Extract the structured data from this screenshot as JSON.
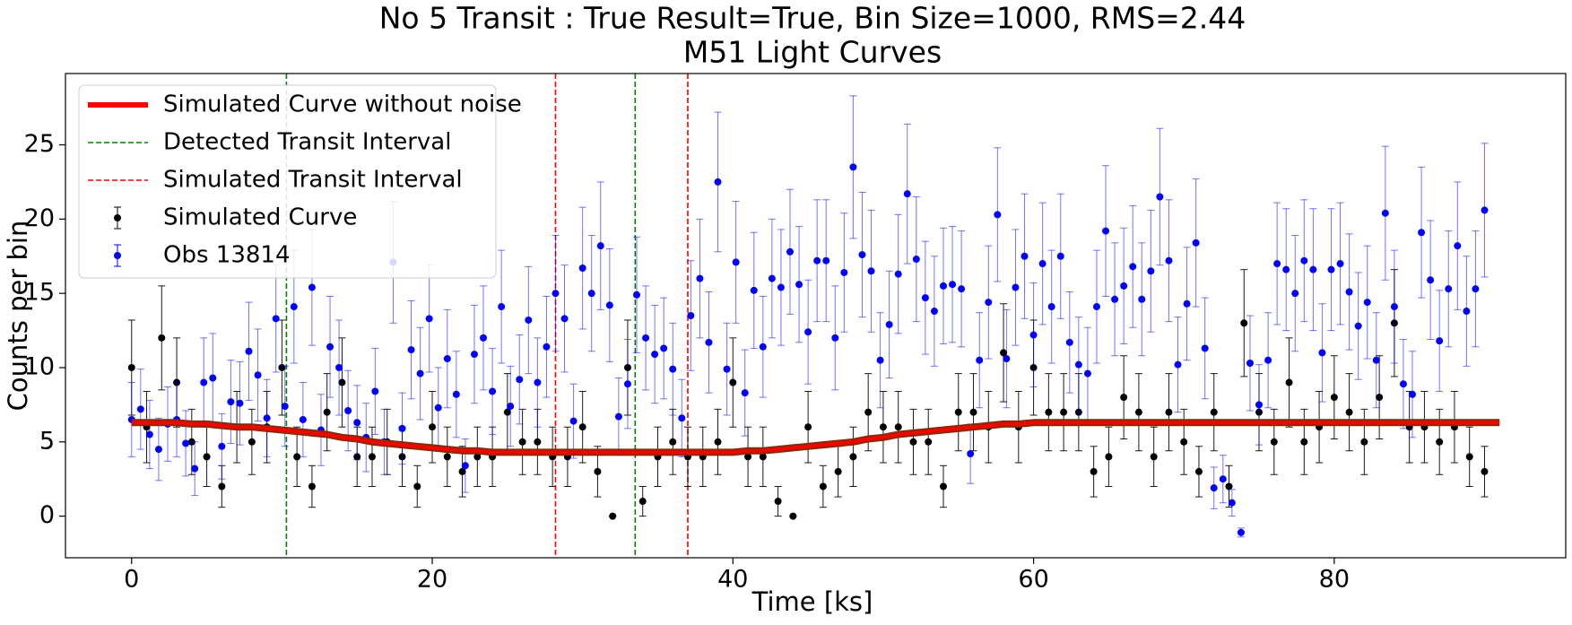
{
  "chart_data": {
    "type": "errorbar",
    "title": "No 5 Transit : True Result=True, Bin Size=1000, RMS=2.44",
    "subtitle": "M51 Light Curves",
    "x_label": "Time [ks]",
    "y_label": "Counts per bin",
    "xlim": [
      -4.4,
      95.4
    ],
    "ylim": [
      -2.8,
      29.8
    ],
    "xticks": [
      0,
      20,
      40,
      60,
      80
    ],
    "yticks": [
      0,
      5,
      10,
      15,
      20,
      25
    ],
    "legend": "upper left",
    "series": [
      {
        "name": "Simulated Curve without noise",
        "kind": "line",
        "color": "#ff0000",
        "x": [
          0,
          1,
          2,
          3,
          4,
          5,
          6,
          7,
          8,
          9,
          10,
          11,
          12,
          13,
          14,
          15,
          16,
          17,
          18,
          19,
          20,
          21,
          22,
          23,
          24,
          25,
          26,
          27,
          28,
          29,
          30,
          31,
          32,
          33,
          34,
          35,
          36,
          37,
          38,
          39,
          40,
          41,
          42,
          43,
          44,
          45,
          46,
          47,
          48,
          49,
          50,
          51,
          52,
          53,
          54,
          55,
          56,
          57,
          58,
          59,
          60,
          61,
          62,
          63,
          64,
          65,
          66,
          67,
          68,
          69,
          70,
          71,
          72,
          73,
          74,
          75,
          76,
          77,
          78,
          79,
          80,
          81,
          82,
          83,
          84,
          85,
          86,
          87,
          88,
          89,
          90,
          91
        ],
        "values": [
          6.3,
          6.3,
          6.3,
          6.3,
          6.2,
          6.2,
          6.1,
          6.0,
          6.0,
          5.9,
          5.8,
          5.7,
          5.6,
          5.5,
          5.3,
          5.2,
          5.0,
          4.9,
          4.8,
          4.7,
          4.6,
          4.5,
          4.4,
          4.4,
          4.3,
          4.3,
          4.3,
          4.3,
          4.3,
          4.3,
          4.3,
          4.3,
          4.3,
          4.3,
          4.3,
          4.3,
          4.3,
          4.3,
          4.3,
          4.3,
          4.3,
          4.4,
          4.4,
          4.5,
          4.6,
          4.7,
          4.8,
          4.9,
          5.0,
          5.2,
          5.3,
          5.5,
          5.6,
          5.7,
          5.8,
          5.9,
          6.0,
          6.1,
          6.2,
          6.2,
          6.3,
          6.3,
          6.3,
          6.3,
          6.3,
          6.3,
          6.3,
          6.3,
          6.3,
          6.3,
          6.3,
          6.3,
          6.3,
          6.3,
          6.3,
          6.3,
          6.3,
          6.3,
          6.3,
          6.3,
          6.3,
          6.3,
          6.3,
          6.3,
          6.3,
          6.3,
          6.3,
          6.3,
          6.3,
          6.3,
          6.3,
          6.3
        ]
      },
      {
        "name": "Detected Transit Interval",
        "kind": "vline",
        "color": "#008000",
        "x": [
          10.3,
          33.5
        ]
      },
      {
        "name": "Simulated Transit Interval",
        "kind": "vline",
        "color": "#ff0000",
        "x": [
          28.2,
          37.0
        ]
      },
      {
        "name": "Simulated Curve",
        "kind": "points",
        "color": "#000000",
        "x": [
          0,
          1,
          2,
          3,
          4,
          5,
          6,
          7,
          8,
          9,
          10,
          11,
          12,
          13,
          14,
          15,
          16,
          17,
          18,
          19,
          20,
          21,
          22,
          23,
          24,
          25,
          26,
          27,
          28,
          29,
          30,
          31,
          32,
          33,
          34,
          35,
          36,
          37,
          38,
          39,
          40,
          41,
          42,
          43,
          44,
          45,
          46,
          47,
          48,
          49,
          50,
          51,
          52,
          53,
          54,
          55,
          56,
          57,
          58,
          59,
          60,
          61,
          62,
          63,
          64,
          65,
          66,
          67,
          68,
          69,
          70,
          71,
          72,
          73,
          74,
          75,
          76,
          77,
          78,
          79,
          80,
          81,
          82,
          83,
          84,
          85,
          86,
          87,
          88,
          89,
          90
        ],
        "values": [
          10,
          6,
          12,
          9,
          5,
          4,
          2,
          6,
          5,
          6,
          10,
          4,
          2,
          7,
          9,
          4,
          4,
          5,
          4,
          2,
          6,
          4,
          3,
          4,
          4,
          7,
          5,
          5,
          4,
          4,
          6,
          3,
          0,
          10,
          1,
          4,
          5,
          4,
          4,
          5,
          9,
          4,
          4,
          1,
          0,
          6,
          2,
          3,
          4,
          7,
          6,
          6,
          5,
          5,
          2,
          7,
          7,
          6,
          11,
          6,
          10,
          7,
          7,
          7,
          3,
          4,
          8,
          7,
          4,
          7,
          5,
          3,
          7,
          2,
          13,
          7,
          5,
          9,
          5,
          6,
          8,
          7,
          5,
          8,
          13,
          6,
          6,
          5,
          6,
          4,
          3
        ],
        "errors": [
          3.2,
          2.4,
          3.5,
          3,
          2.2,
          2,
          1.4,
          2.4,
          2.2,
          2.4,
          3.2,
          2,
          1.4,
          2.6,
          3,
          2,
          2,
          2.2,
          2,
          1.4,
          2.4,
          2,
          1.7,
          2,
          2,
          2.6,
          2.2,
          2.2,
          2,
          2,
          2.4,
          1.7,
          0,
          3.2,
          1,
          2,
          2.2,
          2,
          2,
          2.2,
          3,
          2,
          2,
          1,
          0,
          2.4,
          1.4,
          1.7,
          2,
          2.6,
          2.4,
          2.4,
          2.2,
          2.2,
          1.4,
          2.6,
          2.6,
          2.4,
          3.3,
          2.4,
          3.2,
          2.6,
          2.6,
          2.6,
          1.7,
          2,
          2.8,
          2.6,
          2,
          2.6,
          2.2,
          1.7,
          2.6,
          1.4,
          3.6,
          2.6,
          2.2,
          3,
          2.2,
          2.4,
          2.8,
          2.6,
          2.2,
          2.8,
          3.6,
          2.4,
          2.4,
          2.2,
          2.4,
          2,
          1.7
        ]
      },
      {
        "name": "Obs 13814",
        "kind": "points",
        "color": "#0000ff",
        "x": [
          0,
          0.6,
          1.2,
          1.8,
          2.4,
          3,
          3.6,
          4.2,
          4.8,
          5.4,
          6,
          6.6,
          7.2,
          7.8,
          8.4,
          9,
          9.6,
          10.2,
          10.8,
          11.4,
          12,
          12.6,
          13.2,
          13.8,
          14.4,
          15,
          15.6,
          16.2,
          16.8,
          17.4,
          18,
          18.6,
          19.2,
          19.8,
          20.4,
          21,
          21.6,
          22.2,
          22.8,
          23.4,
          24,
          24.6,
          25.2,
          25.8,
          26.4,
          27,
          27.6,
          28.2,
          28.8,
          29.4,
          30,
          30.6,
          31.2,
          31.8,
          32.4,
          33,
          33.6,
          34.2,
          34.8,
          35.4,
          36,
          36.6,
          37.2,
          37.8,
          38.4,
          39,
          39.6,
          40.2,
          40.8,
          41.4,
          42,
          42.6,
          43.2,
          43.8,
          44.4,
          45,
          45.6,
          46.2,
          46.8,
          47.4,
          48,
          48.6,
          49.2,
          49.8,
          50.4,
          51,
          51.6,
          52.2,
          52.8,
          53.4,
          54,
          54.6,
          55.2,
          55.8,
          56.4,
          57,
          57.6,
          58.2,
          58.8,
          59.4,
          60,
          60.6,
          61.2,
          61.8,
          62.4,
          63,
          63.6,
          64.2,
          64.8,
          65.4,
          66,
          66.6,
          67.2,
          67.8,
          68.4,
          69,
          69.6,
          70.2,
          70.8,
          71.4,
          72,
          72.6,
          73.2,
          73.8,
          74.4,
          75,
          75.6,
          76.2,
          76.8,
          77.4,
          78,
          78.6,
          79.2,
          79.8,
          80.4,
          81,
          81.6,
          82.2,
          82.8,
          83.4,
          84,
          84.6,
          85.2,
          85.8,
          86.4,
          87,
          87.6,
          88.2,
          88.8,
          89.4,
          90
        ],
        "values": [
          6.5,
          7.2,
          5.5,
          4.5,
          6.2,
          6.5,
          4.9,
          3.2,
          9.0,
          9.3,
          4.7,
          7.7,
          7.6,
          11.1,
          9.5,
          6.6,
          13.3,
          7.4,
          14.1,
          6.5,
          15.4,
          5.8,
          11.4,
          10.0,
          7.1,
          6.3,
          5.3,
          8.4,
          5.0,
          17.1,
          5.9,
          11.2,
          9.6,
          13.3,
          7.3,
          10.6,
          8.2,
          3.4,
          10.9,
          12.0,
          8.4,
          14.1,
          7.4,
          9.2,
          13.2,
          9.0,
          11.4,
          15.0,
          13.3,
          6.4,
          16.7,
          15.0,
          18.2,
          14.2,
          6.7,
          8.9,
          14.9,
          12.0,
          10.9,
          11.3,
          9.9,
          6.6,
          13.5,
          16.0,
          11.7,
          22.5,
          9.9,
          17.1,
          8.3,
          15.2,
          11.4,
          16.0,
          15.4,
          17.8,
          15.6,
          12.4,
          17.2,
          17.2,
          12.0,
          16.4,
          23.5,
          17.6,
          16.5,
          10.5,
          12.9,
          16.3,
          21.7,
          17.3,
          14.7,
          13.8,
          15.5,
          15.6,
          15.3,
          4.2,
          10.5,
          14.4,
          20.3,
          10.6,
          15.4,
          17.5,
          12.2,
          17.0,
          14.1,
          17.5,
          11.7,
          10.2,
          9.6,
          14.1,
          19.2,
          14.6,
          15.5,
          16.8,
          14.6,
          16.5,
          21.5,
          17.2,
          10.2,
          14.3,
          18.4,
          11.3,
          1.9,
          2.5,
          0.9,
          -1.1,
          10.3,
          7.5,
          10.5,
          17.0,
          16.6,
          15.0,
          17.2,
          16.6,
          11.0,
          16.6,
          17.0,
          15.1,
          12.8,
          14.4,
          10.5,
          20.4,
          14.1,
          8.9,
          8.2,
          19.1,
          15.9,
          11.8,
          15.3,
          18.2,
          13.8,
          15.3,
          20.6
        ],
        "errors": [
          2.5,
          2.7,
          2.3,
          2.1,
          2.5,
          2.5,
          2.2,
          1.8,
          3.0,
          3.0,
          2.2,
          2.8,
          2.8,
          3.3,
          3.1,
          2.6,
          3.6,
          2.7,
          3.8,
          2.5,
          3.9,
          2.4,
          3.4,
          3.2,
          2.7,
          2.5,
          2.3,
          2.9,
          2.2,
          4.1,
          2.4,
          3.3,
          3.1,
          3.6,
          2.7,
          3.3,
          2.9,
          1.8,
          3.3,
          3.5,
          2.9,
          3.8,
          2.7,
          3.0,
          3.6,
          3.0,
          3.4,
          3.9,
          3.6,
          2.5,
          4.1,
          3.9,
          4.3,
          3.8,
          2.6,
          3.0,
          3.9,
          3.5,
          3.3,
          3.4,
          3.1,
          2.6,
          3.7,
          4.0,
          3.4,
          4.7,
          3.1,
          4.1,
          2.9,
          3.9,
          3.4,
          4.0,
          3.9,
          4.2,
          3.9,
          3.5,
          4.1,
          4.1,
          3.5,
          4.0,
          4.8,
          4.2,
          4.1,
          3.2,
          3.6,
          4.0,
          4.7,
          4.2,
          3.8,
          3.7,
          3.9,
          3.9,
          3.9,
          2.0,
          3.2,
          3.8,
          4.5,
          3.3,
          3.9,
          4.2,
          3.5,
          4.1,
          3.8,
          4.2,
          3.4,
          3.2,
          3.1,
          3.8,
          4.4,
          3.8,
          3.9,
          4.1,
          3.8,
          4.1,
          4.6,
          4.1,
          3.2,
          3.8,
          4.3,
          3.4,
          1.4,
          1.6,
          0.9,
          0.3,
          3.2,
          2.7,
          3.2,
          4.1,
          4.1,
          3.9,
          4.1,
          4.1,
          3.3,
          4.1,
          4.1,
          3.9,
          3.6,
          3.8,
          3.2,
          4.5,
          3.8,
          3.0,
          2.9,
          4.4,
          4.0,
          3.4,
          3.9,
          4.3,
          3.7,
          3.9,
          4.5
        ]
      }
    ]
  }
}
